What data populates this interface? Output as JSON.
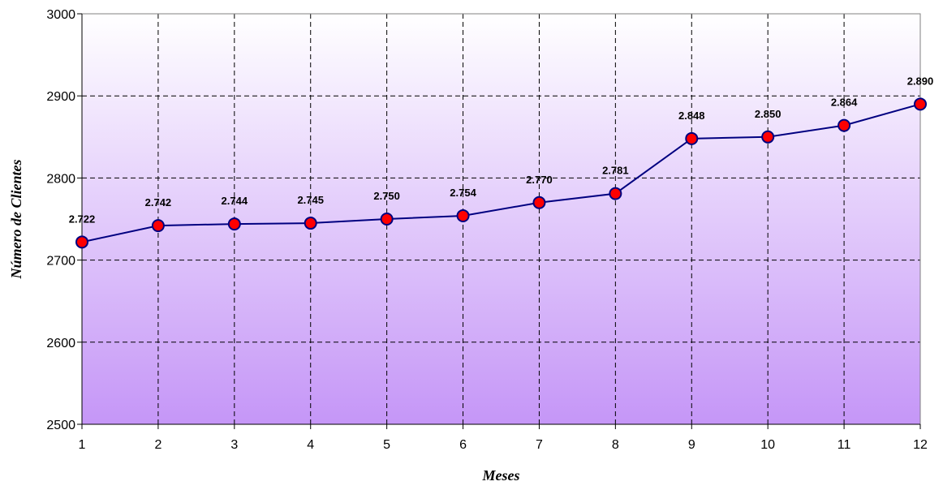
{
  "chart_data": {
    "type": "line",
    "xlabel": "Meses",
    "ylabel": "Número de Clientes",
    "x": [
      1,
      2,
      3,
      4,
      5,
      6,
      7,
      8,
      9,
      10,
      11,
      12
    ],
    "x_tick_labels": [
      "1",
      "2",
      "3",
      "4",
      "5",
      "6",
      "7",
      "8",
      "9",
      "10",
      "11",
      "12"
    ],
    "y_tick_labels": [
      "2500",
      "2600",
      "2700",
      "2800",
      "2900",
      "3000"
    ],
    "y_ticks": [
      2500,
      2600,
      2700,
      2800,
      2900,
      3000
    ],
    "ylim": [
      2500,
      3000
    ],
    "series": [
      {
        "values": [
          2722,
          2742,
          2744,
          2745,
          2750,
          2754,
          2770,
          2781,
          2848,
          2850,
          2864,
          2890
        ],
        "data_labels": [
          "2.722",
          "2.742",
          "2.744",
          "2.745",
          "2.750",
          "2.754",
          "2.770",
          "2.781",
          "2.848",
          "2.850",
          "2.864",
          "2.890"
        ],
        "line_color": "#000080",
        "marker_fill": "#ff0000",
        "marker_edge": "#000080"
      }
    ],
    "grid": true,
    "grid_style": "dashed",
    "background_gradient": [
      "#ffffff",
      "#c596f7"
    ]
  }
}
